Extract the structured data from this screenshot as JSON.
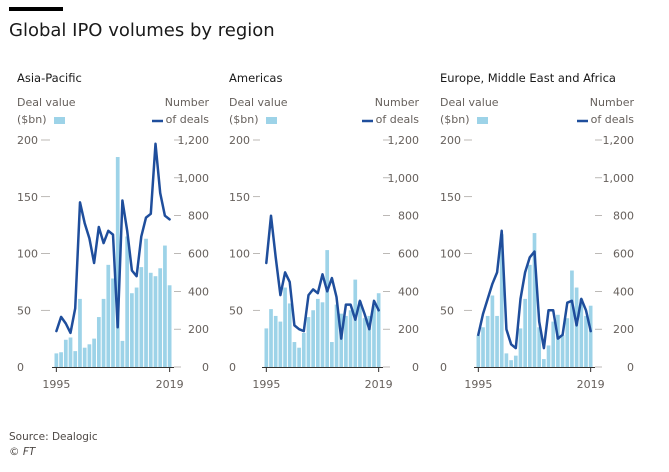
{
  "header": {
    "title": "Global IPO volumes by region"
  },
  "footer": {
    "source": "Source: Dealogic",
    "credit": "© FT"
  },
  "colors": {
    "bar": "#9dd3e8",
    "line": "#1f4e9c",
    "text": "#66605c",
    "axis": "#33302e",
    "background": "#ffffff"
  },
  "chart_data": [
    {
      "type": "bar+line",
      "title": "Asia-Pacific",
      "left_axis_label": [
        "Deal value",
        "($bn)"
      ],
      "right_axis_label": [
        "Number",
        "of deals"
      ],
      "x": [
        1995,
        1996,
        1997,
        1998,
        1999,
        2000,
        2001,
        2002,
        2003,
        2004,
        2005,
        2006,
        2007,
        2008,
        2009,
        2010,
        2011,
        2012,
        2013,
        2014,
        2015,
        2016,
        2017,
        2018,
        2019
      ],
      "x_tick_labels": [
        "1995",
        "2019"
      ],
      "left_ylim": [
        0,
        200
      ],
      "left_ticks": [
        "0",
        "50",
        "100",
        "150",
        "200"
      ],
      "right_ylim": [
        0,
        1200
      ],
      "right_ticks": [
        "0",
        "200",
        "400",
        "600",
        "800",
        "1,000",
        "1,200"
      ],
      "grid": true,
      "series": [
        {
          "name": "Deal value",
          "kind": "bar",
          "axis": "left",
          "values": [
            12,
            13,
            24,
            26,
            14,
            60,
            17,
            20,
            25,
            44,
            60,
            90,
            78,
            185,
            23,
            115,
            65,
            70,
            88,
            113,
            83,
            80,
            87,
            107,
            72
          ]
        },
        {
          "name": "Number of deals",
          "kind": "line",
          "axis": "right",
          "values": [
            190,
            265,
            230,
            180,
            310,
            870,
            760,
            680,
            550,
            740,
            655,
            720,
            700,
            210,
            880,
            720,
            510,
            480,
            690,
            790,
            810,
            1180,
            920,
            800,
            780
          ]
        }
      ]
    },
    {
      "type": "bar+line",
      "title": "Americas",
      "left_axis_label": [
        "Deal value",
        "($bn)"
      ],
      "right_axis_label": [
        "Number",
        "of deals"
      ],
      "x": [
        1995,
        1996,
        1997,
        1998,
        1999,
        2000,
        2001,
        2002,
        2003,
        2004,
        2005,
        2006,
        2007,
        2008,
        2009,
        2010,
        2011,
        2012,
        2013,
        2014,
        2015,
        2016,
        2017,
        2018,
        2019
      ],
      "x_tick_labels": [
        "1995",
        "2019"
      ],
      "left_ylim": [
        0,
        200
      ],
      "left_ticks": [
        "0",
        "50",
        "100",
        "150",
        "200"
      ],
      "right_ylim": [
        0,
        1200
      ],
      "right_ticks": [
        "0",
        "200",
        "400",
        "600",
        "800",
        "1,000",
        "1,200"
      ],
      "grid": true,
      "series": [
        {
          "name": "Deal value",
          "kind": "bar",
          "axis": "left",
          "values": [
            34,
            51,
            45,
            40,
            70,
            56,
            22,
            17,
            30,
            44,
            50,
            60,
            57,
            103,
            22,
            55,
            47,
            45,
            50,
            77,
            58,
            43,
            45,
            54,
            65
          ]
        },
        {
          "name": "Number of deals",
          "kind": "line",
          "axis": "right",
          "values": [
            550,
            800,
            580,
            380,
            500,
            450,
            220,
            200,
            190,
            380,
            410,
            390,
            490,
            400,
            470,
            370,
            150,
            330,
            330,
            250,
            350,
            280,
            200,
            350,
            300
          ]
        }
      ]
    },
    {
      "type": "bar+line",
      "title": "Europe, Middle East and Africa",
      "left_axis_label": [
        "Deal value",
        "($bn)"
      ],
      "right_axis_label": [
        "Number",
        "of deals"
      ],
      "x": [
        1995,
        1996,
        1997,
        1998,
        1999,
        2000,
        2001,
        2002,
        2003,
        2004,
        2005,
        2006,
        2007,
        2008,
        2009,
        2010,
        2011,
        2012,
        2013,
        2014,
        2015,
        2016,
        2017,
        2018,
        2019
      ],
      "x_tick_labels": [
        "1995",
        "2019"
      ],
      "left_ylim": [
        0,
        200
      ],
      "left_ticks": [
        "0",
        "50",
        "100",
        "150",
        "200"
      ],
      "right_ylim": [
        0,
        1200
      ],
      "right_ticks": [
        "0",
        "200",
        "400",
        "600",
        "800",
        "1,000",
        "1,200"
      ],
      "grid": true,
      "series": [
        {
          "name": "Deal value",
          "kind": "bar",
          "axis": "left",
          "values": [
            28,
            35,
            45,
            63,
            45,
            117,
            12,
            6,
            10,
            34,
            60,
            90,
            118,
            35,
            7,
            19,
            40,
            46,
            28,
            43,
            85,
            70,
            60,
            45,
            54
          ]
        },
        {
          "name": "Number of deals",
          "kind": "line",
          "axis": "right",
          "values": [
            170,
            280,
            360,
            440,
            500,
            720,
            200,
            120,
            100,
            360,
            500,
            580,
            610,
            240,
            100,
            300,
            300,
            150,
            170,
            340,
            350,
            220,
            360,
            300,
            190
          ]
        }
      ]
    }
  ]
}
